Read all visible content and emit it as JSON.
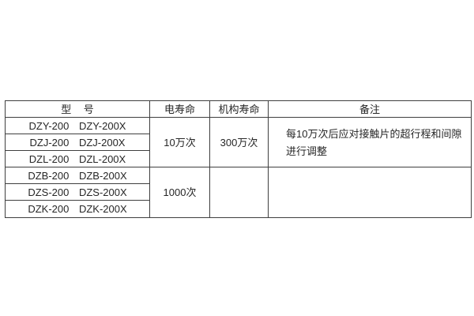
{
  "page": {
    "background_color": "#ffffff",
    "border_color": "#3f3f3f",
    "text_color": "#262626"
  },
  "table": {
    "headers": {
      "model": "型 号",
      "electrical_life": "电寿命",
      "mechanism_life": "机构寿命",
      "remarks": "备注"
    },
    "model_rows": [
      "DZY-200 DZY-200X",
      "DZJ-200 DZJ-200X",
      "DZL-200 DZL-200X",
      "DZB-200 DZB-200X",
      "DZS-200 DZS-200X",
      "DZK-200 DZK-200X"
    ],
    "groups": [
      {
        "electrical_life": "10万次",
        "mechanism_life": "300万次",
        "remark_line1": "每10万次后应对接触片的超行程和间隙",
        "remark_line2": "进行调整"
      },
      {
        "electrical_life": "1000次",
        "mechanism_life": "",
        "remarks": ""
      }
    ]
  }
}
